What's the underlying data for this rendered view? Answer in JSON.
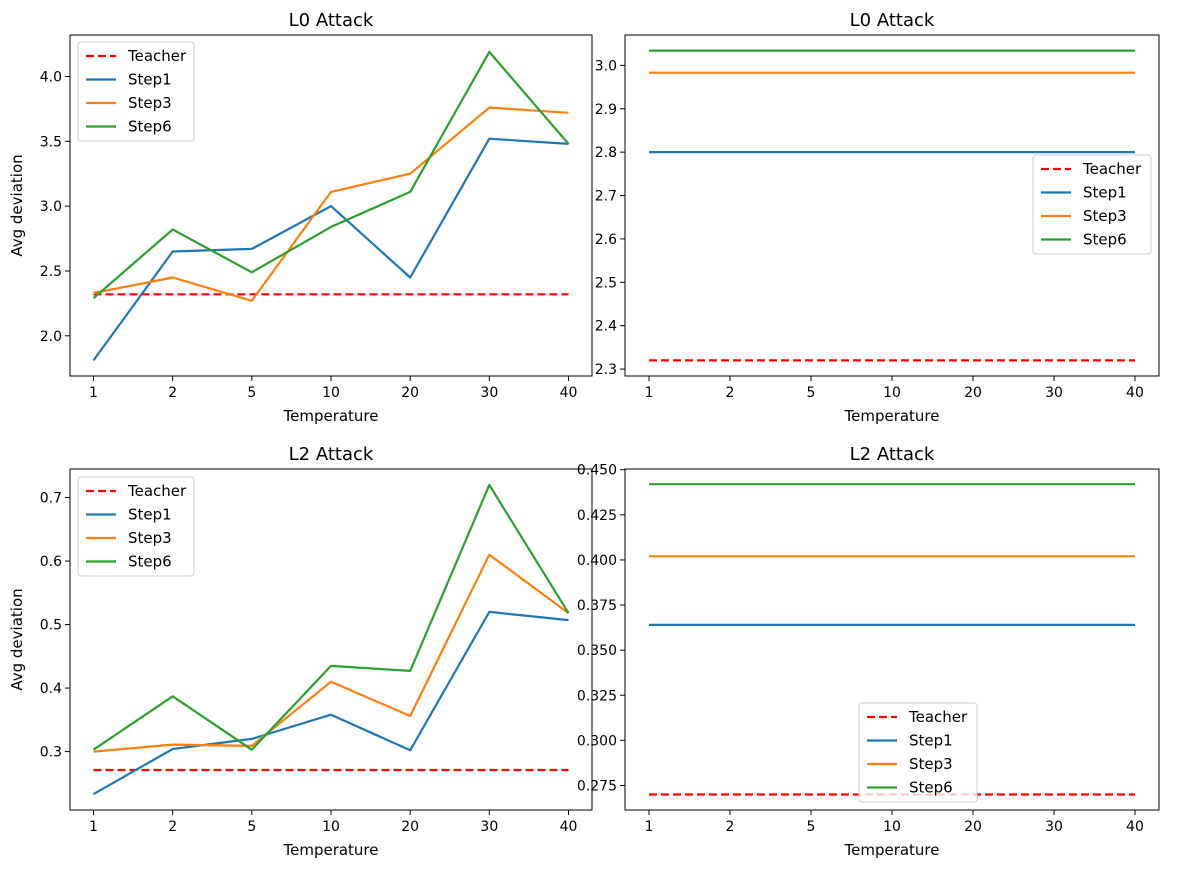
{
  "colors": {
    "Teacher": "#ff0000",
    "Step1": "#1f77b4",
    "Step3": "#ff7f0e",
    "Step6": "#2ca02c"
  },
  "chart_data": [
    {
      "type": "line",
      "title": "L0 Attack",
      "xlabel": "Temperature",
      "ylabel": "Avg deviation",
      "categories": [
        "1",
        "2",
        "5",
        "10",
        "20",
        "30",
        "40"
      ],
      "ylim": [
        1.69,
        4.32
      ],
      "yticks": [
        "2.0",
        "2.5",
        "3.0",
        "3.5",
        "4.0"
      ],
      "legend": "upper left",
      "series": [
        {
          "name": "Teacher",
          "style": "dashed",
          "values": [
            2.32,
            2.32,
            2.32,
            2.32,
            2.32,
            2.32,
            2.32
          ]
        },
        {
          "name": "Step1",
          "style": "solid",
          "values": [
            1.81,
            2.65,
            2.67,
            3.0,
            2.45,
            3.52,
            3.48
          ]
        },
        {
          "name": "Step3",
          "style": "solid",
          "values": [
            2.33,
            2.45,
            2.27,
            3.11,
            3.25,
            3.76,
            3.72
          ]
        },
        {
          "name": "Step6",
          "style": "solid",
          "values": [
            2.29,
            2.82,
            2.49,
            2.84,
            3.11,
            4.19,
            3.48
          ]
        }
      ]
    },
    {
      "type": "line",
      "title": "L0 Attack",
      "xlabel": "Temperature",
      "ylabel": "",
      "categories": [
        "1",
        "2",
        "5",
        "10",
        "20",
        "30",
        "40"
      ],
      "ylim": [
        2.284,
        3.07
      ],
      "yticks": [
        "2.3",
        "2.4",
        "2.5",
        "2.6",
        "2.7",
        "2.8",
        "2.9",
        "3.0"
      ],
      "legend": "center right",
      "series": [
        {
          "name": "Teacher",
          "style": "dashed",
          "values": [
            2.32,
            2.32,
            2.32,
            2.32,
            2.32,
            2.32,
            2.32
          ]
        },
        {
          "name": "Step1",
          "style": "solid",
          "values": [
            2.8,
            2.8,
            2.8,
            2.8,
            2.8,
            2.8,
            2.8
          ]
        },
        {
          "name": "Step3",
          "style": "solid",
          "values": [
            2.983,
            2.983,
            2.983,
            2.983,
            2.983,
            2.983,
            2.983
          ]
        },
        {
          "name": "Step6",
          "style": "solid",
          "values": [
            3.034,
            3.034,
            3.034,
            3.034,
            3.034,
            3.034,
            3.034
          ]
        }
      ]
    },
    {
      "type": "line",
      "title": "L2 Attack",
      "xlabel": "Temperature",
      "ylabel": "Avg deviation",
      "categories": [
        "1",
        "2",
        "5",
        "10",
        "20",
        "30",
        "40"
      ],
      "ylim": [
        0.208,
        0.745
      ],
      "yticks": [
        "0.3",
        "0.4",
        "0.5",
        "0.6",
        "0.7"
      ],
      "legend": "upper left",
      "series": [
        {
          "name": "Teacher",
          "style": "dashed",
          "values": [
            0.271,
            0.271,
            0.271,
            0.271,
            0.271,
            0.271,
            0.271
          ]
        },
        {
          "name": "Step1",
          "style": "solid",
          "values": [
            0.233,
            0.304,
            0.32,
            0.358,
            0.302,
            0.52,
            0.507
          ]
        },
        {
          "name": "Step3",
          "style": "solid",
          "values": [
            0.3,
            0.311,
            0.309,
            0.41,
            0.356,
            0.61,
            0.518
          ]
        },
        {
          "name": "Step6",
          "style": "solid",
          "values": [
            0.303,
            0.387,
            0.303,
            0.435,
            0.427,
            0.72,
            0.518
          ]
        }
      ]
    },
    {
      "type": "line",
      "title": "L2 Attack",
      "xlabel": "Temperature",
      "ylabel": "",
      "categories": [
        "1",
        "2",
        "5",
        "10",
        "20",
        "30",
        "40"
      ],
      "ylim": [
        0.2614,
        0.4504
      ],
      "yticks": [
        "0.275",
        "0.300",
        "0.325",
        "0.350",
        "0.375",
        "0.400",
        "0.425",
        "0.450"
      ],
      "legend": "lower center",
      "series": [
        {
          "name": "Teacher",
          "style": "dashed",
          "values": [
            0.27,
            0.27,
            0.27,
            0.27,
            0.27,
            0.27,
            0.27
          ]
        },
        {
          "name": "Step1",
          "style": "solid",
          "values": [
            0.364,
            0.364,
            0.364,
            0.364,
            0.364,
            0.364,
            0.364
          ]
        },
        {
          "name": "Step3",
          "style": "solid",
          "values": [
            0.402,
            0.402,
            0.402,
            0.402,
            0.402,
            0.402,
            0.402
          ]
        },
        {
          "name": "Step6",
          "style": "solid",
          "values": [
            0.442,
            0.442,
            0.442,
            0.442,
            0.442,
            0.442,
            0.442
          ]
        }
      ]
    }
  ]
}
